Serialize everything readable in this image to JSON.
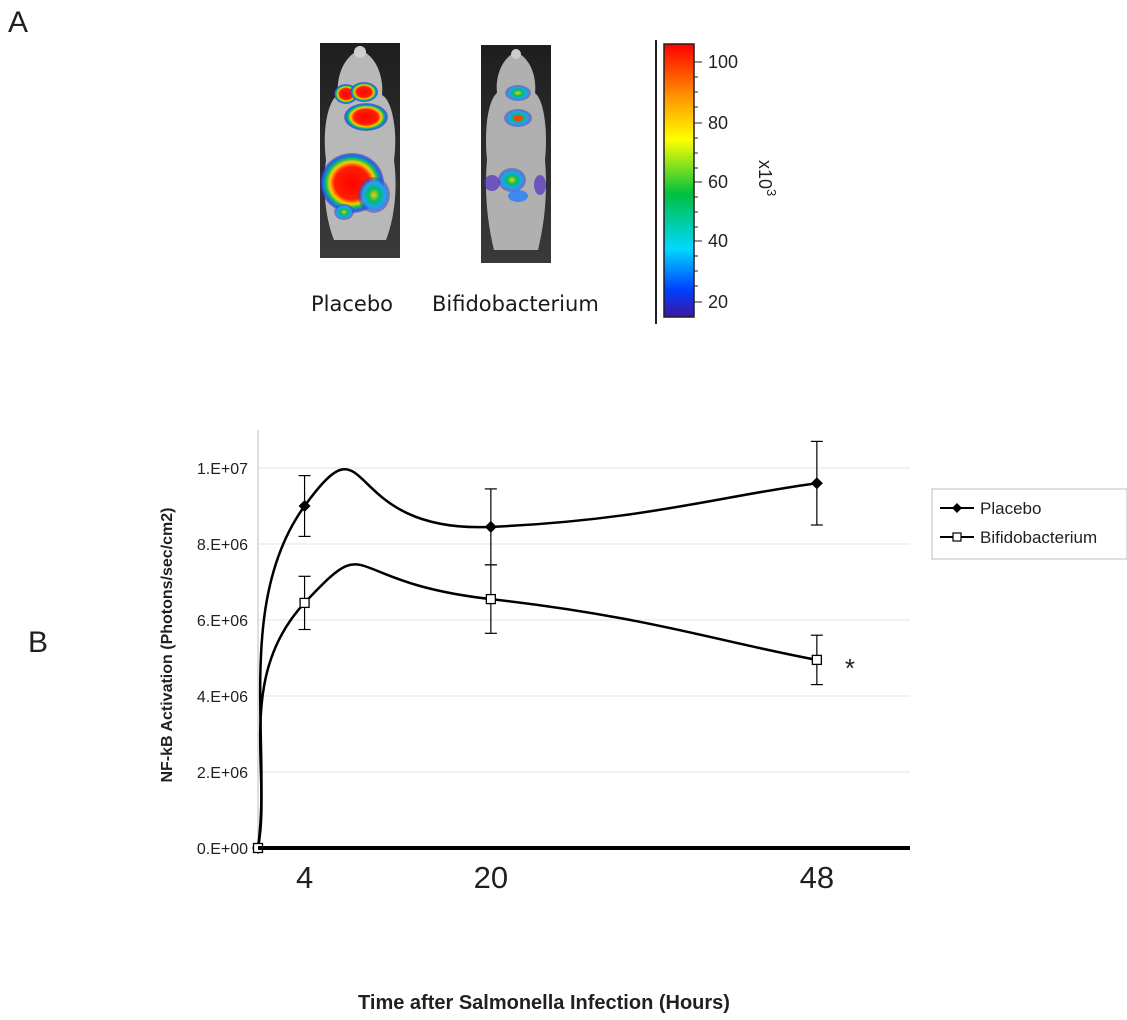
{
  "panel_a": {
    "letter": "A",
    "captions": [
      "Placebo",
      "Bifidobacterium"
    ],
    "scale_ticks": [
      "100",
      "80",
      "60",
      "40",
      "20"
    ],
    "scale_unit": "x10",
    "scale_exponent": "3",
    "scale_colors": [
      "#ff0000",
      "#ff8000",
      "#ffff00",
      "#00c000",
      "#00e0ff",
      "#0040ff",
      "#3010a0"
    ]
  },
  "panel_b": {
    "letter": "B"
  },
  "chart_data": {
    "type": "line",
    "title": "",
    "xlabel": "Time after Salmonella Infection (Hours)",
    "ylabel": "NF-kB Activation (Photons/sec/cm2)",
    "x": [
      0,
      4,
      20,
      48
    ],
    "x_tick_labels": [
      {
        "x": 4,
        "label": "4"
      },
      {
        "x": 20,
        "label": "20"
      },
      {
        "x": 48,
        "label": "48"
      }
    ],
    "xlim": [
      0,
      56
    ],
    "ylim": [
      0,
      11000000
    ],
    "y_ticks": [
      {
        "value": 0,
        "label": "0.E+00"
      },
      {
        "value": 2000000,
        "label": "2.E+06"
      },
      {
        "value": 4000000,
        "label": "4.E+06"
      },
      {
        "value": 6000000,
        "label": "6.E+06"
      },
      {
        "value": 8000000,
        "label": "8.E+06"
      },
      {
        "value": 10000000,
        "label": "1.E+07"
      }
    ],
    "grid": "horizontal",
    "legend_position": "right",
    "smoothed": true,
    "series": [
      {
        "name": "Placebo",
        "marker": "diamond-filled",
        "values": [
          0,
          9000000,
          8450000,
          9600000
        ],
        "error": [
          0,
          800000,
          1000000,
          1100000
        ],
        "color": "#000000"
      },
      {
        "name": "Bifidobacterium",
        "marker": "square-open",
        "values": [
          0,
          6450000,
          6550000,
          4950000
        ],
        "error": [
          0,
          700000,
          900000,
          650000
        ],
        "color": "#000000"
      }
    ],
    "annotations": [
      {
        "series": "Bifidobacterium",
        "x": 48,
        "text": "*"
      }
    ]
  }
}
